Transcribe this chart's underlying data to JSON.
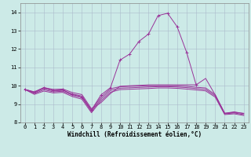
{
  "x": [
    0,
    1,
    2,
    3,
    4,
    5,
    6,
    7,
    8,
    9,
    10,
    11,
    12,
    13,
    14,
    15,
    16,
    17,
    18,
    19,
    20,
    21,
    22,
    23
  ],
  "spike_line": [
    9.8,
    9.65,
    9.9,
    9.75,
    9.78,
    9.52,
    9.38,
    8.68,
    9.5,
    9.9,
    11.4,
    11.72,
    12.42,
    12.82,
    13.82,
    13.95,
    13.22,
    11.82,
    10.05,
    null,
    null,
    null,
    null,
    null
  ],
  "flat_lines": [
    [
      9.8,
      9.67,
      9.9,
      9.8,
      9.82,
      9.63,
      9.52,
      8.75,
      9.08,
      9.58,
      9.97,
      10.0,
      10.02,
      10.05,
      10.05,
      10.05,
      10.05,
      10.05,
      10.05,
      10.4,
      9.5,
      8.5,
      8.55,
      8.5
    ],
    [
      9.8,
      9.62,
      9.85,
      9.72,
      9.75,
      9.55,
      9.44,
      8.67,
      9.38,
      9.84,
      9.95,
      9.97,
      9.98,
      9.99,
      10.0,
      10.0,
      9.99,
      9.97,
      9.92,
      9.88,
      9.52,
      8.5,
      8.58,
      8.48
    ],
    [
      9.8,
      9.58,
      9.78,
      9.67,
      9.7,
      9.48,
      9.36,
      8.6,
      9.28,
      9.75,
      9.87,
      9.89,
      9.91,
      9.93,
      9.95,
      9.95,
      9.93,
      9.9,
      9.85,
      9.8,
      9.45,
      8.47,
      8.52,
      8.43
    ],
    [
      9.8,
      9.53,
      9.71,
      9.61,
      9.64,
      9.41,
      9.27,
      8.53,
      9.18,
      9.65,
      9.79,
      9.81,
      9.83,
      9.85,
      9.88,
      9.88,
      9.86,
      9.82,
      9.77,
      9.72,
      9.38,
      8.43,
      8.47,
      8.38
    ]
  ],
  "xlim": [
    -0.5,
    23.5
  ],
  "ylim": [
    8.0,
    14.5
  ],
  "yticks": [
    8,
    9,
    10,
    11,
    12,
    13,
    14
  ],
  "xticks": [
    0,
    1,
    2,
    3,
    4,
    5,
    6,
    7,
    8,
    9,
    10,
    11,
    12,
    13,
    14,
    15,
    16,
    17,
    18,
    19,
    20,
    21,
    22,
    23
  ],
  "xlabel": "Windchill (Refroidissement éolien,°C)",
  "bg_color": "#cceae7",
  "grid_color": "#aabbcc",
  "line_color": "#993399",
  "tick_fontsize": 5.0,
  "xlabel_fontsize": 5.5
}
